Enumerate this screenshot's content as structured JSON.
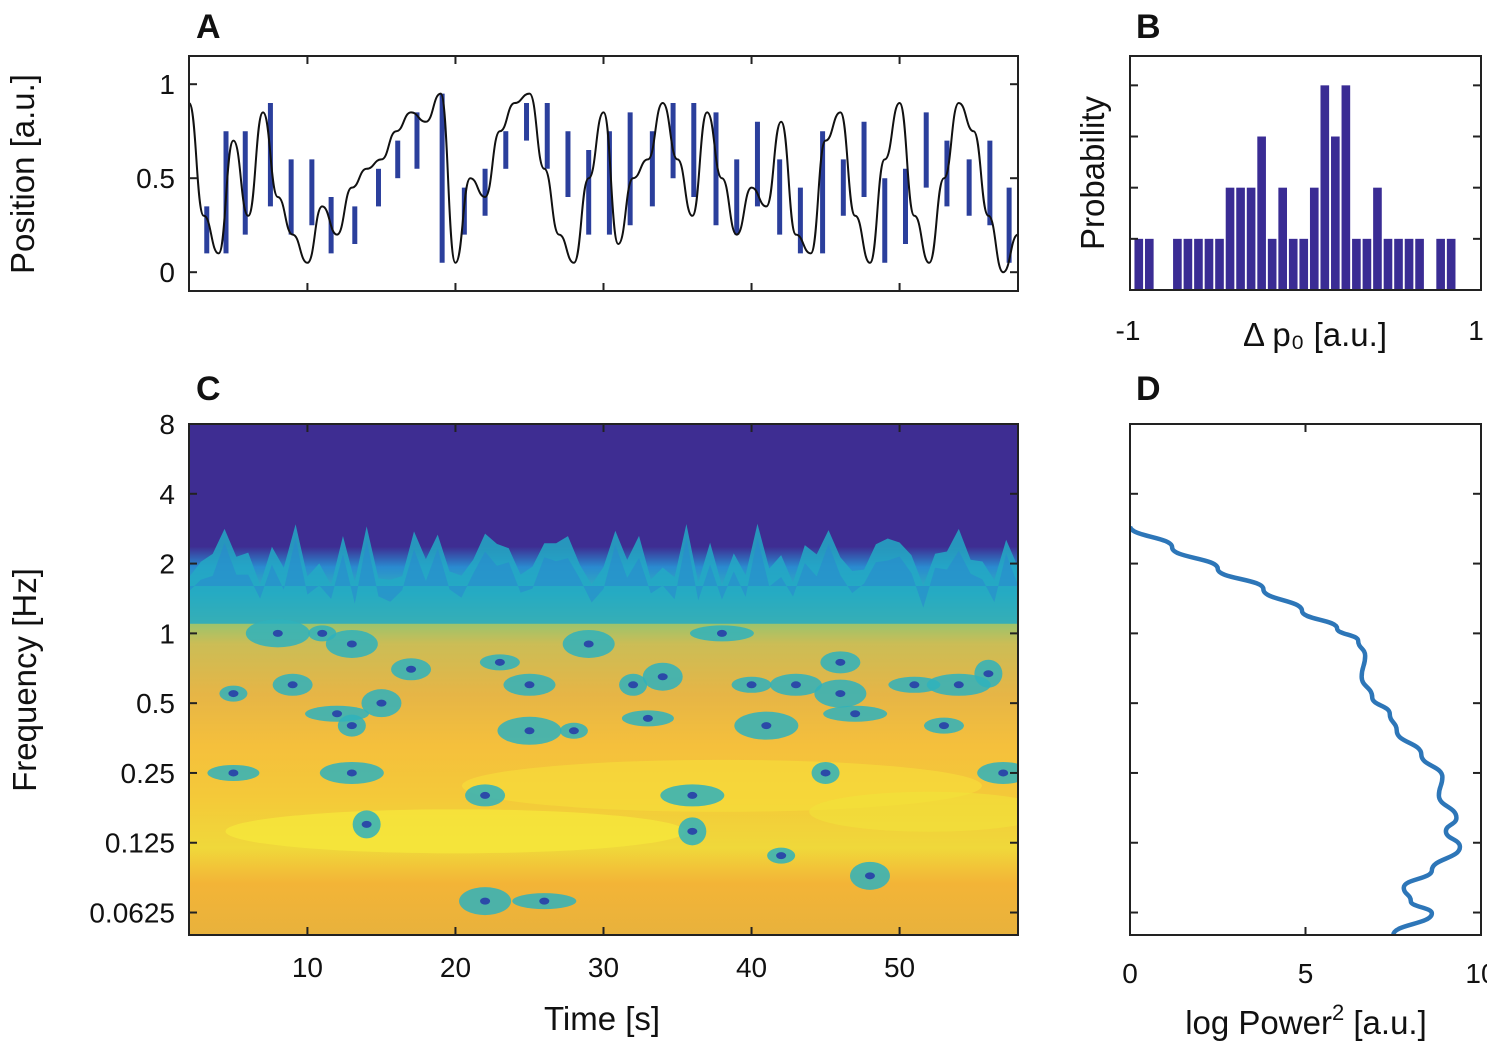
{
  "chart_data": [
    {
      "panel": "A",
      "type": "line",
      "title": "",
      "xlabel": "",
      "ylabel": "Position [a.u.]",
      "xlim": [
        2,
        58
      ],
      "ylim": [
        -0.1,
        1.15
      ],
      "yticks": [
        0,
        0.5,
        1
      ],
      "ytick_labels": [
        "0",
        "0.5",
        "1"
      ],
      "series": [
        {
          "name": "trajectory",
          "color": "#111111",
          "x": [
            2,
            3,
            4,
            5,
            6,
            7,
            8,
            9,
            10,
            11,
            12,
            13,
            14,
            15,
            16,
            17,
            18,
            19,
            20,
            21,
            22,
            23,
            24,
            25,
            26,
            27,
            28,
            29,
            30,
            31,
            32,
            33,
            34,
            35,
            36,
            37,
            38,
            39,
            40,
            41,
            42,
            43,
            44,
            45,
            46,
            47,
            48,
            49,
            50,
            51,
            52,
            53,
            54,
            55,
            56,
            57,
            58
          ],
          "y": [
            0.9,
            0.3,
            0.1,
            0.7,
            0.3,
            0.85,
            0.4,
            0.2,
            0.05,
            0.35,
            0.2,
            0.45,
            0.55,
            0.6,
            0.75,
            0.85,
            0.8,
            0.95,
            0.05,
            0.5,
            0.4,
            0.75,
            0.9,
            0.95,
            0.55,
            0.2,
            0.05,
            0.5,
            0.85,
            0.15,
            0.5,
            0.6,
            0.9,
            0.6,
            0.3,
            0.85,
            0.5,
            0.2,
            0.45,
            0.35,
            0.8,
            0.2,
            0.1,
            0.7,
            0.85,
            0.3,
            0.05,
            0.6,
            0.9,
            0.3,
            0.05,
            0.5,
            0.9,
            0.75,
            0.3,
            0.0,
            0.2
          ]
        },
        {
          "name": "samples",
          "color": "#2b3f9c",
          "type": "stem",
          "x": [
            3.2,
            4.5,
            5.8,
            7.5,
            8.9,
            10.3,
            11.6,
            13.2,
            14.8,
            16.1,
            17.4,
            19.1,
            20.6,
            22.0,
            23.4,
            24.8,
            26.2,
            27.6,
            29.0,
            30.4,
            31.8,
            33.3,
            34.7,
            36.1,
            37.6,
            39.0,
            40.4,
            41.9,
            43.3,
            44.8,
            46.2,
            47.6,
            49.0,
            50.4,
            51.8,
            53.2,
            54.7,
            56.1,
            57.4
          ],
          "y0": [
            0.35,
            0.1,
            0.75,
            0.35,
            0.6,
            0.25,
            0.1,
            0.35,
            0.55,
            0.7,
            0.85,
            0.05,
            0.2,
            0.3,
            0.55,
            0.7,
            0.9,
            0.4,
            0.2,
            0.75,
            0.25,
            0.35,
            0.5,
            0.9,
            0.25,
            0.6,
            0.35,
            0.2,
            0.45,
            0.1,
            0.3,
            0.8,
            0.05,
            0.55,
            0.85,
            0.35,
            0.6,
            0.25,
            0.05
          ],
          "y1": [
            0.1,
            0.75,
            0.2,
            0.9,
            0.2,
            0.6,
            0.4,
            0.15,
            0.35,
            0.5,
            0.55,
            0.95,
            0.45,
            0.55,
            0.75,
            0.9,
            0.55,
            0.75,
            0.65,
            0.2,
            0.85,
            0.75,
            0.9,
            0.4,
            0.85,
            0.2,
            0.8,
            0.6,
            0.1,
            0.75,
            0.6,
            0.4,
            0.5,
            0.15,
            0.45,
            0.7,
            0.3,
            0.7,
            0.45
          ]
        }
      ]
    },
    {
      "panel": "B",
      "type": "bar",
      "title": "",
      "xlabel": "Δ p₀  [a.u.]",
      "ylabel": "Probability",
      "xlim": [
        -1,
        1
      ],
      "xtick_labels": [
        "-1",
        "1"
      ],
      "x": [
        -0.95,
        -0.89,
        -0.79,
        -0.73,
        -0.67,
        -0.61,
        -0.55,
        -0.49,
        -0.43,
        -0.37,
        -0.31,
        -0.25,
        -0.19,
        -0.13,
        -0.07,
        -0.01,
        0.05,
        0.11,
        0.17,
        0.23,
        0.29,
        0.35,
        0.41,
        0.47,
        0.53,
        0.59,
        0.65,
        0.71,
        0.77,
        0.83
      ],
      "values": [
        1,
        1,
        0,
        1,
        1,
        1,
        1,
        1,
        2,
        2,
        2,
        3,
        1,
        2,
        1,
        1,
        2,
        4,
        3,
        4,
        1,
        1,
        2,
        1,
        1,
        1,
        1,
        0,
        1,
        1
      ],
      "color": "#3a2c94"
    },
    {
      "panel": "C",
      "type": "heatmap",
      "title": "",
      "xlabel": "Time [s]",
      "ylabel": "Frequency [Hz]",
      "xlim": [
        2,
        58
      ],
      "xticks": [
        10,
        20,
        30,
        40,
        50
      ],
      "xtick_labels": [
        "10",
        "20",
        "30",
        "40",
        "50"
      ],
      "yscale": "log2",
      "ylim": [
        0.05,
        8
      ],
      "yticks": [
        0.0625,
        0.125,
        0.25,
        0.5,
        1,
        2,
        4,
        8
      ],
      "ytick_labels": [
        "0.0625",
        "0.125",
        "0.25",
        "0.5",
        "1",
        "2",
        "4",
        "8"
      ],
      "colormap": "parula",
      "colors": [
        "#3e2d92",
        "#2a8fd0",
        "#20b5b5",
        "#6fc27d",
        "#c7bc55",
        "#f2b13a",
        "#f2e536"
      ]
    },
    {
      "panel": "D",
      "type": "line",
      "title": "",
      "xlabel": "log Power",
      "xlabel_sup": "2",
      "xlabel_suffix": " [a.u.]",
      "ylabel": "",
      "xlim": [
        0,
        10
      ],
      "xticks": [
        0,
        5,
        10
      ],
      "xtick_labels": [
        "0",
        "5",
        "10"
      ],
      "yscale": "log2",
      "ylim": [
        0.05,
        8
      ],
      "series": [
        {
          "name": "global power",
          "color": "#2d76b8",
          "x": [
            0.0,
            1.2,
            2.5,
            3.8,
            4.9,
            5.9,
            6.5,
            6.7,
            6.6,
            6.9,
            7.4,
            7.6,
            8.3,
            8.9,
            8.8,
            9.3,
            9.0,
            9.4,
            8.6,
            7.8,
            8.0,
            8.6,
            7.5
          ],
          "y": [
            2.9,
            2.35,
            1.9,
            1.55,
            1.25,
            1.05,
            0.93,
            0.8,
            0.65,
            0.53,
            0.45,
            0.38,
            0.3,
            0.24,
            0.2,
            0.16,
            0.14,
            0.12,
            0.095,
            0.08,
            0.07,
            0.062,
            0.05
          ]
        }
      ]
    }
  ],
  "panels": {
    "a_label": "A",
    "b_label": "B",
    "c_label": "C",
    "d_label": "D"
  }
}
